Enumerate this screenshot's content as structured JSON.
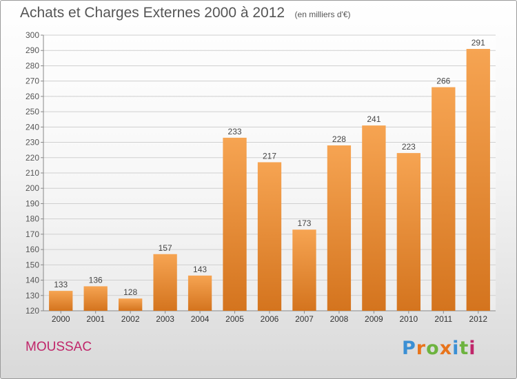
{
  "title": "Achats et Charges Externes 2000 à 2012",
  "subtitle": "(en milliers d'€)",
  "commune": "MOUSSAC",
  "logo": {
    "text": "Proxiti",
    "letter_colors": [
      "#3a8fd4",
      "#e8741c",
      "#6db33f",
      "#e8741c",
      "#3a8fd4",
      "#6db33f",
      "#c0266a"
    ]
  },
  "colors": {
    "bar_top": "#f6a452",
    "bar_bottom": "#d4741e",
    "grid": "#cfcfcf",
    "text": "#555555",
    "commune": "#c0266a"
  },
  "chart_data": {
    "type": "bar",
    "title": "Achats et Charges Externes 2000 à 2012",
    "subtitle": "(en milliers d'€)",
    "categories": [
      "2000",
      "2001",
      "2002",
      "2003",
      "2004",
      "2005",
      "2006",
      "2007",
      "2008",
      "2009",
      "2010",
      "2011",
      "2012"
    ],
    "values": [
      133,
      136,
      128,
      157,
      143,
      233,
      217,
      173,
      228,
      241,
      223,
      266,
      291
    ],
    "ylim": [
      120,
      300
    ],
    "ytick_step": 10,
    "grid": true,
    "data_labels": true
  }
}
